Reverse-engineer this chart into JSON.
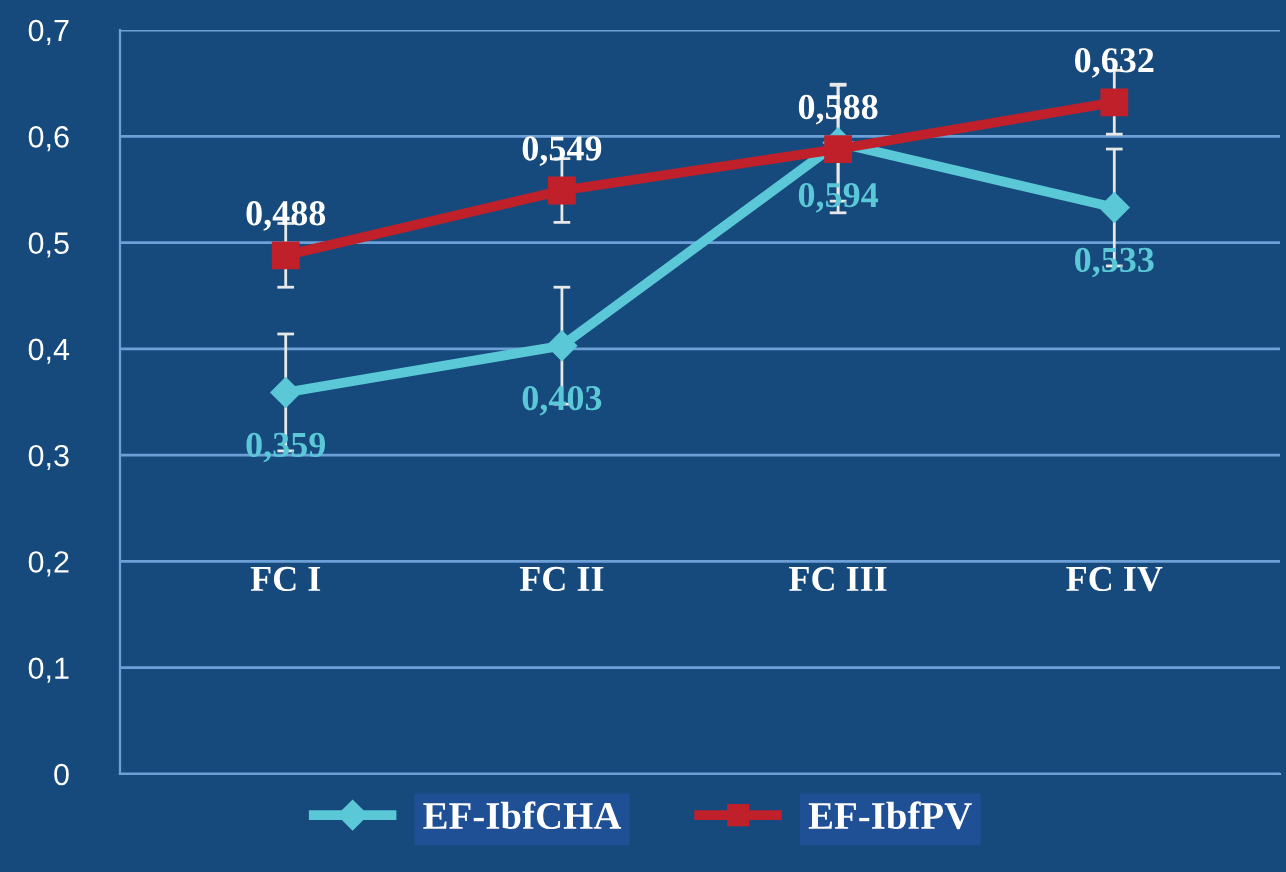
{
  "chart_data": {
    "type": "line",
    "categories": [
      "FC I",
      "FC II",
      "FC III",
      "FC IV"
    ],
    "series": [
      {
        "name": "EF-IbfCHA",
        "color": "#5bc8d8",
        "values": [
          0.359,
          0.403,
          0.594,
          0.533
        ],
        "errors": [
          0.055,
          0.055,
          0.055,
          0.055
        ],
        "marker": "diamond",
        "value_labels": [
          "0,359",
          "0,403",
          "0,594",
          "0,533"
        ]
      },
      {
        "name": "EF-IbfPV",
        "color": "#c0202a",
        "values": [
          0.488,
          0.549,
          0.588,
          0.632
        ],
        "errors": [
          0.03,
          0.03,
          0.06,
          0.03
        ],
        "marker": "square",
        "value_labels": [
          "0,488",
          "0,549",
          "0,588",
          "0,632"
        ]
      }
    ],
    "ylim": [
      0,
      0.7
    ],
    "yticks": [
      0,
      {
        "value": 0.1,
        "label": "0,1"
      },
      {
        "value": 0.2,
        "label": "0,2"
      },
      {
        "value": 0.3,
        "label": "0,3"
      },
      {
        "value": 0.4,
        "label": "0,4"
      },
      {
        "value": 0.5,
        "label": "0,5"
      },
      {
        "value": 0.6,
        "label": "0,6"
      },
      {
        "value": 0.7,
        "label": "0,7"
      }
    ],
    "grid": "y",
    "legend": "bottom",
    "line_style": "solid"
  }
}
